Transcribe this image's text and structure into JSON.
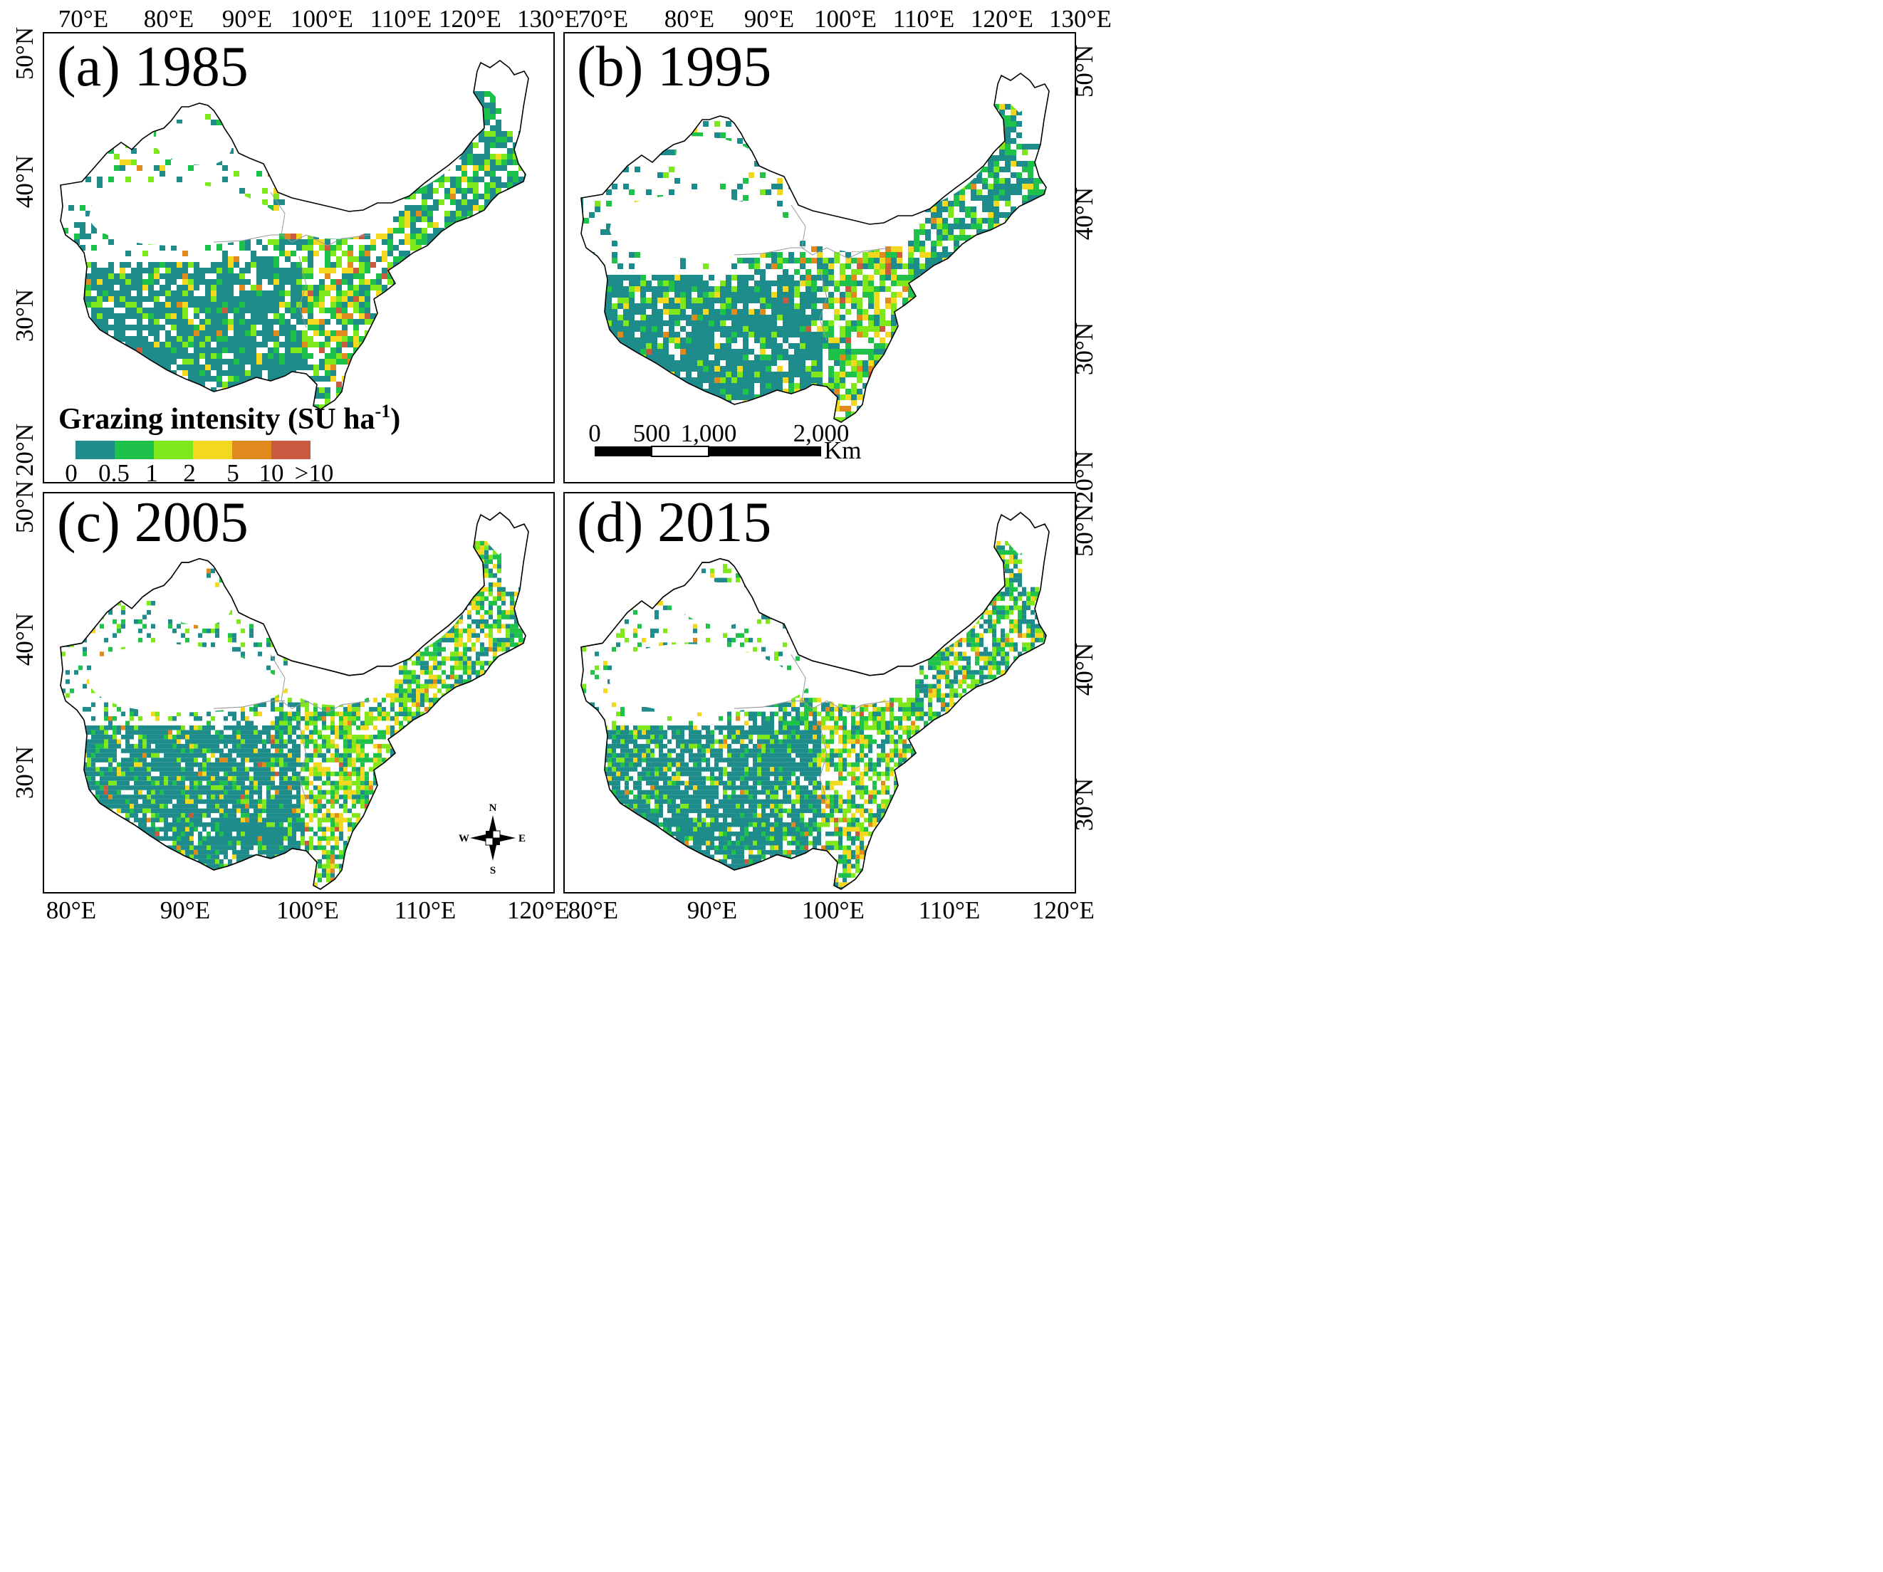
{
  "panels": [
    {
      "id": "a",
      "title": "(a) 1985",
      "top_ticks": [
        "70°E",
        "80°E",
        "90°E",
        "100°E",
        "110°E",
        "120°E",
        "130°E"
      ],
      "left_ticks": [
        "50°N",
        "40°N",
        "30°N",
        "20°N"
      ]
    },
    {
      "id": "b",
      "title": "(b) 1995",
      "top_ticks": [
        "70°E",
        "80°E",
        "90°E",
        "100°E",
        "110°E",
        "120°E",
        "130°E"
      ],
      "right_ticks": [
        "50°N",
        "40°N",
        "30°N",
        "20°N"
      ]
    },
    {
      "id": "c",
      "title": "(c) 2005",
      "bottom_ticks": [
        "80°E",
        "90°E",
        "100°E",
        "110°E",
        "120°E"
      ],
      "left_ticks": [
        "50°N",
        "40°N",
        "30°N"
      ]
    },
    {
      "id": "d",
      "title": "(d) 2015",
      "bottom_ticks": [
        "80°E",
        "90°E",
        "100°E",
        "110°E",
        "120°E"
      ],
      "right_ticks": [
        "50°N",
        "40°N",
        "30°N"
      ]
    }
  ],
  "legend": {
    "title_main": "Grazing intensity (SU ha",
    "title_sup": "-1",
    "title_close": ")",
    "classes": [
      {
        "range": "0–0.5",
        "color": "#1f8c8c"
      },
      {
        "range": "0.5–1",
        "color": "#1ec24a"
      },
      {
        "range": "1–2",
        "color": "#7fe81a"
      },
      {
        "range": "2–5",
        "color": "#f2d81e"
      },
      {
        "range": "5–10",
        "color": "#e08a1e"
      },
      {
        "range": ">10",
        "color": "#c85a40"
      }
    ],
    "tick_labels": [
      "0",
      "0.5",
      "1",
      "2",
      "5",
      "10",
      ">10"
    ]
  },
  "scalebar": {
    "labels": [
      "0",
      "500",
      "1,000",
      "2,000"
    ],
    "unit": "Km"
  },
  "north_arrow": {
    "n": "N",
    "s": "S",
    "e": "E",
    "w": "W"
  }
}
